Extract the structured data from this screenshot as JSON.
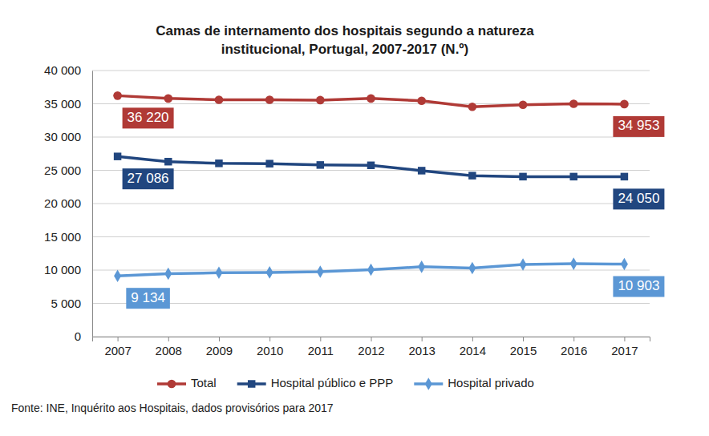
{
  "chart_data": {
    "type": "line",
    "title": [
      "Camas de internamento dos hospitais segundo a natureza",
      "institucional, Portugal, 2007-2017 (N.º)"
    ],
    "source": "Fonte: INE, Inquérito aos Hospitais, dados provisórios para 2017",
    "categories": [
      "2007",
      "2008",
      "2009",
      "2010",
      "2011",
      "2012",
      "2013",
      "2014",
      "2015",
      "2016",
      "2017"
    ],
    "series": [
      {
        "name": "Total",
        "color": "#b03a36",
        "marker": "circle",
        "line_style": "solid",
        "values": [
          36220,
          35800,
          35600,
          35600,
          35550,
          35800,
          35450,
          34550,
          34850,
          35000,
          34953
        ],
        "value_labels": [
          "36 220",
          null,
          null,
          null,
          null,
          null,
          null,
          null,
          null,
          null,
          "34 953"
        ]
      },
      {
        "name": "Hospital público e PPP",
        "color": "#21467f",
        "marker": "square",
        "line_style": "solid",
        "values": [
          27086,
          26300,
          26050,
          26000,
          25800,
          25750,
          24950,
          24200,
          24050,
          24050,
          24050
        ],
        "value_labels": [
          "27 086",
          null,
          null,
          null,
          null,
          null,
          null,
          null,
          null,
          null,
          "24 050"
        ]
      },
      {
        "name": "Hospital privado",
        "color": "#5b97d5",
        "marker": "diamond",
        "line_style": "solid",
        "values": [
          9134,
          9450,
          9600,
          9650,
          9750,
          10050,
          10500,
          10300,
          10850,
          10950,
          10903
        ],
        "value_labels": [
          "9 134",
          null,
          null,
          null,
          null,
          null,
          null,
          null,
          null,
          null,
          "10 903"
        ]
      }
    ],
    "ylim": [
      0,
      40000
    ],
    "yticks": [
      0,
      {
        "value": 5000,
        "label": "5 000"
      },
      {
        "value": 10000,
        "label": "10 000"
      },
      {
        "value": 15000,
        "label": "15 000"
      },
      {
        "value": 20000,
        "label": "20 000"
      },
      {
        "value": 25000,
        "label": "25 000"
      },
      {
        "value": 30000,
        "label": "30 000"
      },
      {
        "value": 35000,
        "label": "35 000"
      },
      {
        "value": 40000,
        "label": "40 000"
      }
    ],
    "grid": true,
    "legend": "bottom"
  }
}
